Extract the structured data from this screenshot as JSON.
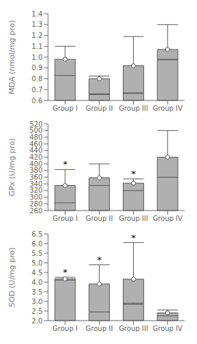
{
  "chart_data": [
    {
      "type": "bar",
      "ylabel": "MDA (nmol/mg pro)",
      "categories": [
        "Group I",
        "Group II",
        "Group III",
        "Group IV"
      ],
      "values": [
        0.98,
        0.8,
        0.92,
        1.07
      ],
      "q1": [
        0.83,
        0.66,
        0.67,
        0.98
      ],
      "lower_bounds": [
        0.83,
        0.655,
        0.665,
        0.975
      ],
      "upper_bounds": [
        1.1,
        0.825,
        1.19,
        1.3
      ],
      "annotations": [
        null,
        null,
        null,
        null
      ],
      "ylim": [
        0.6,
        1.4
      ],
      "yticks": [
        0.6,
        0.7,
        0.8,
        0.9,
        {
          "value": 1,
          "label": "1.0"
        },
        1.1,
        1.2,
        1.3,
        1.4
      ],
      "color": "#b0b0b0",
      "grid": false
    },
    {
      "type": "bar",
      "ylabel": "GPx (U/mg pro)",
      "categories": [
        "Group I",
        "Group II",
        "Group III",
        "Group IV"
      ],
      "values": [
        335,
        358,
        342,
        420
      ],
      "q1": [
        283,
        335,
        320,
        360
      ],
      "lower_bounds": [
        283,
        335,
        320,
        360
      ],
      "upper_bounds": [
        383,
        400,
        355,
        500
      ],
      "annotations": [
        "*",
        null,
        "*",
        null
      ],
      "ylim": [
        260,
        520
      ],
      "yticks": [
        260,
        280,
        300,
        320,
        340,
        360,
        380,
        400,
        420,
        440,
        460,
        480,
        500,
        520
      ],
      "color": "#b0b0b0",
      "grid": false
    },
    {
      "type": "bar",
      "ylabel": "SOD (U/mg pro)",
      "categories": [
        "Group I",
        "Group II",
        "Group III",
        "Group IV"
      ],
      "values": [
        4.17,
        3.9,
        4.15,
        2.4
      ],
      "q1": [
        4.1,
        2.45,
        2.9,
        2.25
      ],
      "lower_bounds": [
        4.1,
        2.45,
        2.85,
        2.25
      ],
      "upper_bounds": [
        4.25,
        4.9,
        6.05,
        2.55
      ],
      "annotations": [
        "*",
        "*",
        "*",
        null
      ],
      "ylim": [
        2.0,
        6.5
      ],
      "yticks": [
        {
          "value": 2,
          "label": "2.0"
        },
        2.5,
        {
          "value": 3,
          "label": "3.0"
        },
        3.5,
        {
          "value": 4,
          "label": "4.0"
        },
        4.5,
        {
          "value": 5,
          "label": "5.0"
        },
        5.5,
        {
          "value": 6,
          "label": "6.0"
        },
        6.5
      ],
      "color": "#b0b0b0",
      "grid": false
    }
  ]
}
